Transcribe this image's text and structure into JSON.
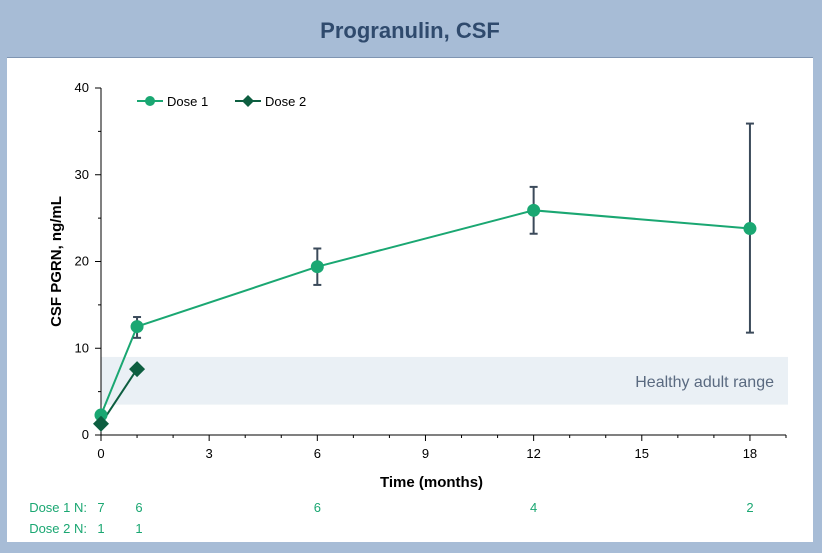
{
  "chart_data": {
    "type": "line",
    "title": "Progranulin, CSF",
    "xlabel": "Time (months)",
    "ylabel": "CSF PGRN, ng/mL",
    "xlim": [
      0,
      19
    ],
    "ylim": [
      0,
      40
    ],
    "x_ticks": [
      0,
      3,
      6,
      9,
      12,
      15,
      18
    ],
    "y_ticks": [
      0,
      10,
      20,
      30,
      40
    ],
    "grid": false,
    "legend_position": "top-left",
    "band": {
      "label": "Healthy adult range",
      "y_range": [
        3.5,
        9
      ],
      "color": "#eaf0f5"
    },
    "series": [
      {
        "name": "Dose 1",
        "color": "#1aa772",
        "marker": "circle",
        "points": [
          {
            "x": 0,
            "y": 2.3
          },
          {
            "x": 1,
            "y": 12.5,
            "err_low": 11.2,
            "err_high": 13.6
          },
          {
            "x": 6,
            "y": 19.4,
            "err_low": 17.3,
            "err_high": 21.5
          },
          {
            "x": 12,
            "y": 25.9,
            "err_low": 23.2,
            "err_high": 28.6
          },
          {
            "x": 18,
            "y": 23.8,
            "err_low": 11.8,
            "err_high": 35.9
          }
        ]
      },
      {
        "name": "Dose 2",
        "color": "#0d5e40",
        "marker": "diamond",
        "points": [
          {
            "x": 0,
            "y": 1.3
          },
          {
            "x": 1,
            "y": 7.6
          }
        ]
      }
    ],
    "errorbar_color": "#3b4a5a",
    "n_rows": [
      {
        "label": "Dose 1 N:",
        "counts": [
          {
            "x": 0,
            "n": "7"
          },
          {
            "x": 1,
            "n": "6"
          },
          {
            "x": 6,
            "n": "6"
          },
          {
            "x": 12,
            "n": "4"
          },
          {
            "x": 18,
            "n": "2"
          }
        ]
      },
      {
        "label": "Dose 2 N:",
        "counts": [
          {
            "x": 0,
            "n": "1"
          },
          {
            "x": 1,
            "n": "1"
          }
        ]
      }
    ]
  }
}
